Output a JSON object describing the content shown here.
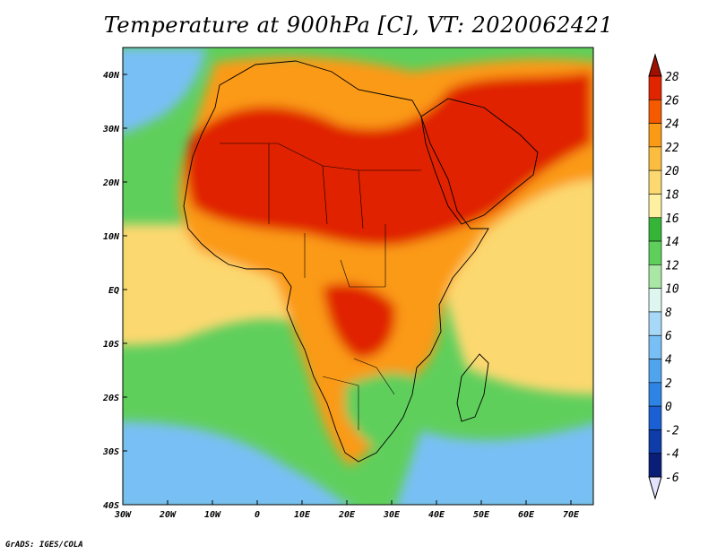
{
  "title": "Temperature at 900hPa [C], VT: 2020062421",
  "credit": "GrADS: IGES/COLA",
  "map": {
    "lon_ticks": [
      "30W",
      "20W",
      "10W",
      "0",
      "10E",
      "20E",
      "30E",
      "40E",
      "50E",
      "60E",
      "70E"
    ],
    "lat_ticks": [
      "40N",
      "30N",
      "20N",
      "10N",
      "EQ",
      "10S",
      "20S",
      "30S",
      "40S"
    ],
    "lon_range": [
      -30,
      75
    ],
    "lat_range": [
      -40,
      45
    ]
  },
  "colorbar": {
    "labels": [
      "28",
      "26",
      "24",
      "22",
      "20",
      "18",
      "16",
      "14",
      "12",
      "10",
      "8",
      "6",
      "4",
      "2",
      "0",
      "-2",
      "-4",
      "-6"
    ],
    "colors": [
      "#a01000",
      "#e02400",
      "#f55a00",
      "#fb9a14",
      "#fbbd40",
      "#fcd870",
      "#fdf0a0",
      "#35b538",
      "#5fcf5c",
      "#a8e8a4",
      "#ddf7f0",
      "#a8d8f8",
      "#78bff5",
      "#50a4ee",
      "#2e84e4",
      "#1a60d4",
      "#0e3ca8",
      "#0a1e78",
      "#08105a"
    ],
    "upper_arrow_color": "#a01000",
    "lower_arrow_color": "#e4e4ff"
  },
  "colors": {
    "ocean_cold": "#78bff5",
    "ocean_green": "#5fcf5c",
    "ocean_warm": "#fcd870",
    "land_hot": "#e02400",
    "land_warm": "#fb9a14",
    "border": "#000000"
  }
}
